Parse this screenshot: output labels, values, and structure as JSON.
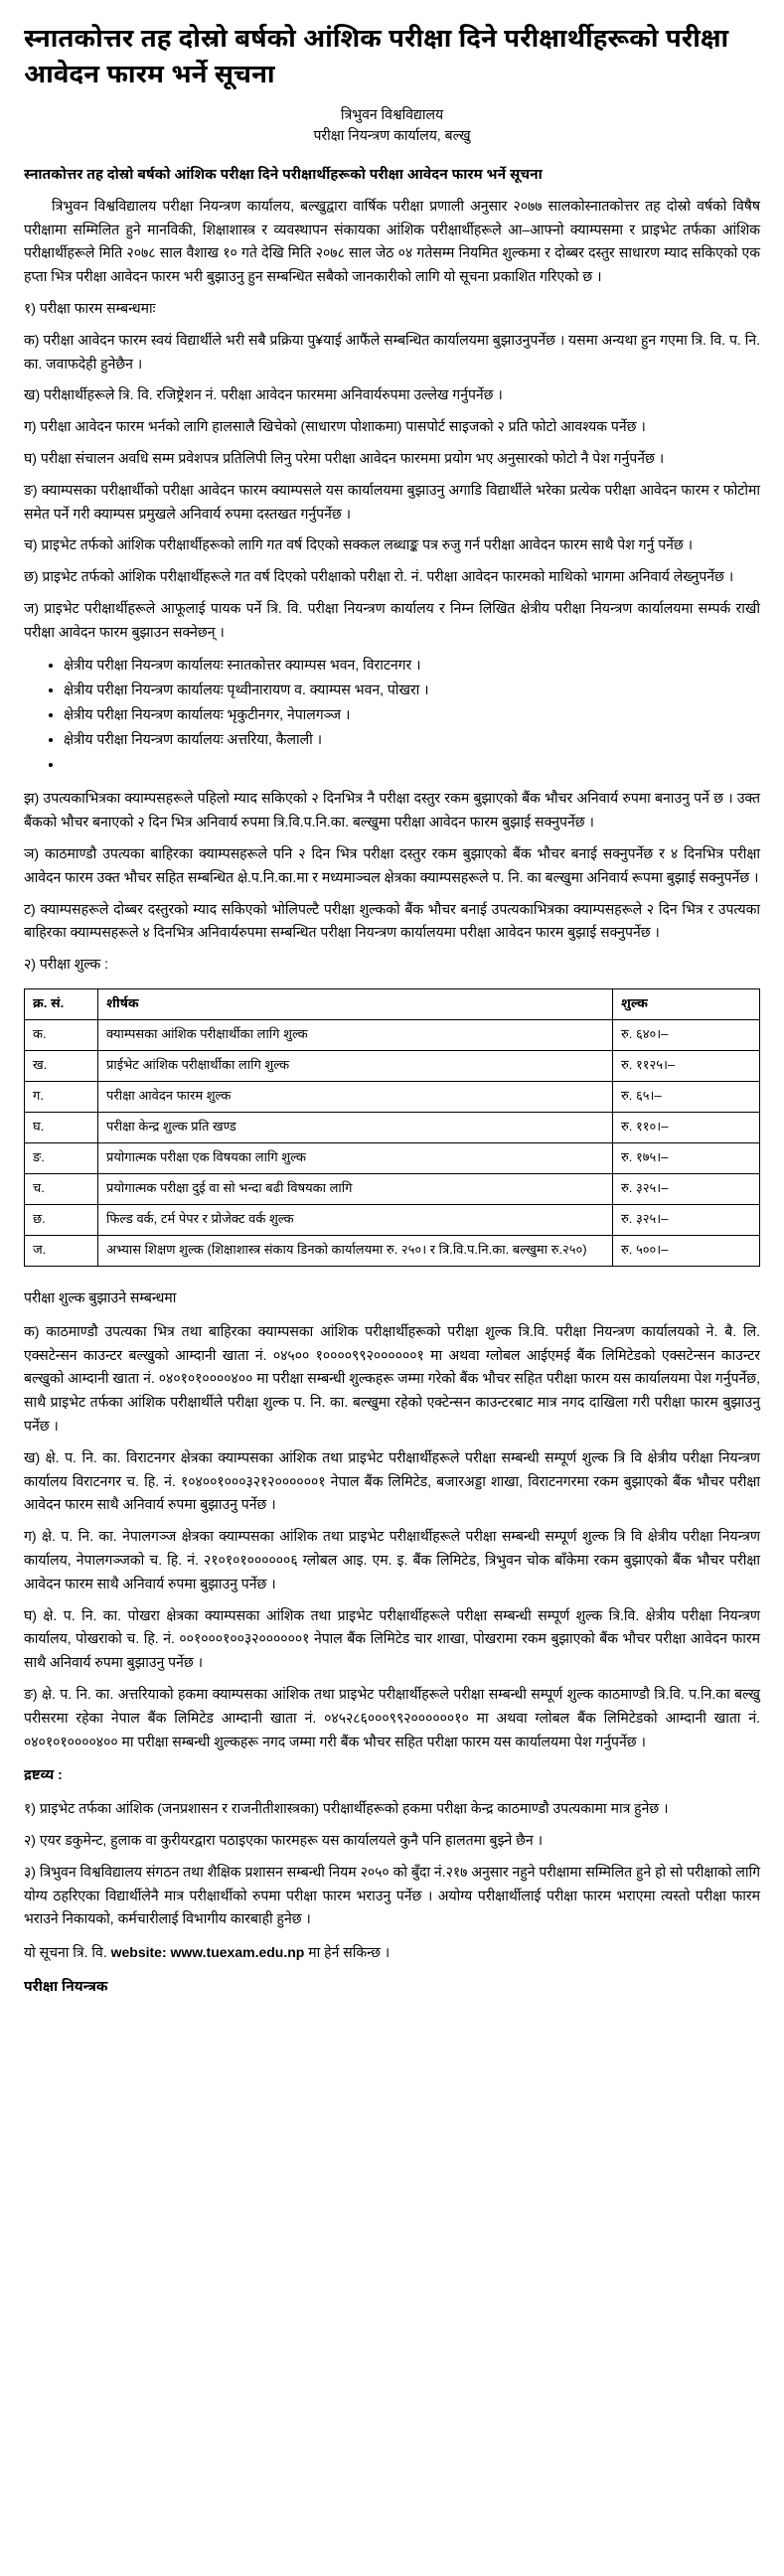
{
  "title": "स्नातकोत्तर तह दोस्रो बर्षको आंशिक परीक्षा दिने परीक्षार्थीहरूको परीक्षा आवेदन फारम भर्ने सूचना",
  "org": {
    "line1": "त्रिभुवन विश्वविद्यालय",
    "line2": "परीक्षा नियन्त्रण कार्यालय, बल्खु"
  },
  "headline_bold": "स्नातकोत्तर तह दोस्रो बर्षको आंशिक परीक्षा दिने परीक्षार्थीहरूको परीक्षा आवेदन फारम भर्ने सूचना",
  "intro": "त्रिभुवन विश्वविद्यालय परीक्षा नियन्त्रण कार्यालय, बल्खुद्वारा वार्षिक परीक्षा प्रणाली अनुसार २०७७ सालकोस्नातकोत्तर तह दोस्रो वर्षको विषैष परीक्षामा सम्मिलित हुने मानविकी, शिक्षाशास्त्र र व्यवस्थापन संकायका आंशिक परीक्षार्थीहरूले आ–आफ्नो क्याम्पसमा र प्राइभेट तर्फका आंशिक परीक्षार्थीहरूले मिति २०७८ साल वैशाख १० गते देखि मिति २०७८ साल जेठ ०४ गतेसम्म नियमित शुल्कमा र दोब्बर दस्तुर साधारण म्याद सकिएको एक हप्ता भित्र परीक्षा आवेदन फारम भरी बुझाउनु हुन सम्बन्धित सबैको जानकारीको लागि यो सूचना प्रकाशित गरिएको छ ।",
  "section1_heading": "१) परीक्षा फारम सम्बन्धमाः",
  "s1": {
    "ka": "क) परीक्षा आवेदन फारम स्वयं विद्यार्थीले भरी सबै प्रक्रिया पु¥याई आफैंले सम्बन्धित कार्यालयमा बुझाउनुपर्नेछ । यसमा अन्यथा हुन गएमा त्रि. वि. प. नि. का. जवाफदेही हुनेछैन ।",
    "kha": "ख) परीक्षार्थीहरूले त्रि. वि. रजिष्ट्रेशन नं. परीक्षा आवेदन फारममा अनिवार्यरुपमा उल्लेख गर्नुपर्नेछ ।",
    "ga": "ग) परीक्षा आवेदन फारम भर्नको लागि हालसालै खिचेको (साधारण पोशाकमा) पासपोर्ट साइजको २ प्रति फोटो आवश्यक पर्नेछ ।",
    "gha": "घ) परीक्षा संचालन अवधि सम्म प्रवेशपत्र प्रतिलिपी लिनु परेमा परीक्षा आवेदन फारममा प्रयोग भए अनुसारको फोटो नै पेश गर्नुपर्नेछ ।",
    "nga": "ङ) क्याम्पसका परीक्षार्थीको परीक्षा आवेदन फारम क्याम्पसले यस कार्यालयमा बुझाउनु अगाडि विद्यार्थीले भरेका प्रत्येक परीक्षा आवेदन फारम र फोटोमा समेत पर्ने गरी क्याम्पस प्रमुखले अनिवार्य रुपमा दस्तखत गर्नुपर्नेछ ।",
    "cha": "च) प्राइभेट तर्फको आंशिक परीक्षार्थीहरूको लागि गत वर्ष दिएको सक्कल लब्धाङ्क पत्र रुजु गर्न परीक्षा आवेदन फारम साथै पेश गर्नु पर्नेछ ।",
    "chha": "छ) प्राइभेट तर्फको आंशिक परीक्षार्थीहरूले गत वर्ष दिएको परीक्षाको परीक्षा रो. नं. परीक्षा आवेदन फारमको माथिको भागमा अनिवार्य लेख्नुपर्नेछ ।",
    "ja": "ज) प्राइभेट परीक्षार्थीहरूले आफूलाई पायक पर्ने त्रि. वि. परीक्षा नियन्त्रण कार्यालय र निम्न लिखित क्षेत्रीय परीक्षा नियन्त्रण कार्यालयमा सम्पर्क राखी परीक्षा आवेदन फारम बुझाउन सक्नेछन् ।",
    "bullets": [
      "क्षेत्रीय परीक्षा नियन्त्रण कार्यालयः स्नातकोत्तर क्याम्पस भवन, विराटनगर ।",
      "क्षेत्रीय परीक्षा नियन्त्रण कार्यालयः पृथ्वीनारायण व. क्याम्पस भवन, पोखरा ।",
      "क्षेत्रीय परीक्षा नियन्त्रण कार्यालयः भृकुटीनगर, नेपालगञ्ज ।",
      "क्षेत्रीय परीक्षा नियन्त्रण कार्यालयः अत्तरिया, कैलाली ।"
    ],
    "jha": "झ)    उपत्यकाभित्रका क्याम्पसहरूले पहिलो म्याद सकिएको २ दिनभित्र नै परीक्षा दस्तुर रकम बुझाएको बैंक भौचर अनिवार्य रुपमा बनाउनु पर्ने छ । उक्त बैंकको भौचर बनाएको २ दिन भित्र अनिवार्य रुपमा त्रि.वि.प.नि.का. बल्खुमा परीक्षा आवेदन फारम बुझाई सक्नुपर्नेछ ।",
    "nya": "ञ)    काठमाण्डौ उपत्यका बाहिरका क्याम्पसहरूले पनि २ दिन भित्र परीक्षा दस्तुर रकम बुझाएको बैंक भौचर बनाई सक्नुपर्नेछ र ४ दिनभित्र परीक्षा आवेदन फारम उक्त भौचर सहित सम्बन्धित क्षे.प.नि.का.मा र मध्यमाञ्चल क्षेत्रका क्याम्पसहरूले प. नि. का बल्खुमा अनिवार्य रूपमा बुझाई सक्नुपर्नेछ ।",
    "ta": "ट)    क्याम्पसहरूले दोब्बर दस्तुरको म्याद सकिएको भोलिपल्टै परीक्षा शुल्कको बैंक भौचर बनाई उपत्यकाभित्रका क्याम्पसहरूले २ दिन भित्र र उपत्यका बाहिरका क्याम्पसहरूले ४ दिनभित्र अनिवार्यरुपमा सम्बन्धित परीक्षा नियन्त्रण कार्यालयमा परीक्षा आवेदन फारम बुझाई सक्नुपर्नेछ ।"
  },
  "section2_heading": "२)    परीक्षा शुल्क :",
  "table": {
    "header": {
      "sn": "क्र. सं.",
      "title": "शीर्षक",
      "fee": "शुल्क"
    },
    "rows": [
      {
        "sn": "क.",
        "title": "क्याम्पसका आंशिक परीक्षार्थीका लागि शुल्क",
        "fee": "रु. ६४०।–"
      },
      {
        "sn": "ख.",
        "title": "प्राईभेट आंशिक परीक्षार्थीका लागि शुल्क",
        "fee": "रु. ११२५।–"
      },
      {
        "sn": "ग.",
        "title": "परीक्षा आवेदन फारम शुल्क",
        "fee": "रु. ६५।–"
      },
      {
        "sn": "घ.",
        "title": "परीक्षा केन्द्र शुल्क प्रति खण्ड",
        "fee": "रु. ११०।–"
      },
      {
        "sn": "ङ.",
        "title": "प्रयोगात्मक परीक्षा एक विषयका लागि शुल्क",
        "fee": "रु. १७५।–"
      },
      {
        "sn": "च.",
        "title": "प्रयोगात्मक परीक्षा दुई वा सो भन्दा बढी विषयका लागि",
        "fee": "रु. ३२५।–"
      },
      {
        "sn": "छ.",
        "title": "फिल्ड वर्क, टर्म पेपर र प्रोजेक्ट वर्क शुल्क",
        "fee": "रु. ३२५।–"
      },
      {
        "sn": "ज.",
        "title": "अभ्यास शिक्षण शुल्क (शिक्षाशास्त्र संकाय डिनको कार्यालयमा रु. २५०। र त्रि.वि.प.नि.का. बल्खुमा रु.२५०)",
        "fee": "रु. ५००।–"
      }
    ]
  },
  "fee_section_heading": "परीक्षा शुल्क बुझाउने सम्बन्धमा",
  "fee_para": {
    "ka": "क)    काठमाण्डौ उपत्यका भित्र तथा बाहिरका क्याम्पसका आंशिक परीक्षार्थीहरूको परीक्षा शुल्क त्रि.वि. परीक्षा नियन्त्रण कार्यालयको ने. बै. लि. एक्सटेन्सन काउन्टर बल्खुको आम्दानी खाता नं. ०४५०० १००००९९२००००००१ मा अथवा ग्लोबल आईएमई बैंक लिमिटेडको एक्सटेन्सन काउन्टर बल्खुको आम्दानी खाता नं. ०४०१०१००००४०० मा परीक्षा सम्बन्धी शुल्कहरू जम्मा गरेको बैंक भौचर सहित परीक्षा फारम यस कार्यालयमा पेश गर्नुपर्नेछ, साथै प्राइभेट तर्फका आंशिक परीक्षार्थीले परीक्षा शुल्क प. नि. का. बल्खुमा रहेको एक्टेन्सन काउन्टरबाट मात्र नगद दाखिला गरी परीक्षा फारम बुझाउनु पर्नेछ ।",
    "kha": "ख)    क्षे. प. नि. का. विराटनगर क्षेत्रका क्याम्पसका आंशिक तथा प्राइभेट परीक्षार्थीहरूले परीक्षा सम्बन्धी सम्पूर्ण शुल्क त्रि वि क्षेत्रीय परीक्षा नियन्त्रण कार्यालय विराटनगर च. हि. नं. १०४००१०००३२१२००००००१ नेपाल बैंक लिमिटेड, बजारअड्डा शाखा, विराटनगरमा रकम बुझाएको बैंक भौचर परीक्षा आवेदन फारम साथै अनिवार्य रुपमा बुझाउनु पर्नेछ ।",
    "ga": "ग)    क्षे. प. नि. का. नेपालगञ्ज क्षेत्रका क्याम्पसका आंशिक तथा प्राइभेट परीक्षार्थीहरूले परीक्षा सम्बन्धी सम्पूर्ण शुल्क त्रि वि क्षेत्रीय परीक्षा नियन्त्रण कार्यालय, नेपालगञ्जको च. हि. नं. २१०१०१००००००६ ग्लोबल आइ. एम. इ. बैंक लिमिटेड, त्रिभुवन चोक बाँकेमा रकम बुझाएको बैंक भौचर परीक्षा आवेदन फारम साथै अनिवार्य रुपमा बुझाउनु पर्नेछ ।",
    "gha": "घ) क्षे. प. नि. का. पोखरा क्षेत्रका क्याम्पसका आंशिक तथा प्राइभेट परीक्षार्थीहरूले परीक्षा सम्बन्धी सम्पूर्ण शुल्क त्रि.वि. क्षेत्रीय परीक्षा नियन्त्रण कार्यालय, पोखराको च. हि. नं. ००१०००१००३२००००००१ नेपाल बैंक लिमिटेड चार शाखा, पोखरामा रकम बुझाएको बैंक भौचर परीक्षा आवेदन फारम साथै अनिवार्य रुपमा बुझाउनु पर्नेछ ।",
    "nga": "ङ) क्षे. प. नि. का. अत्तरियाको हकमा क्याम्पसका आंशिक तथा प्राइभेट परीक्षार्थीहरूले परीक्षा सम्बन्धी सम्पूर्ण शुल्क काठमाण्डौ त्रि.वि. प.नि.का बल्खु परीसरमा रहेका नेपाल बैंक लिमिटेड आम्दानी खाता नं. ०४५२८६०००९९२००००००१० मा अथवा ग्लोबल बैंक लिमिटेडको आम्दानी खाता नं. ०४०१०१००००४०० मा परीक्षा सम्बन्धी शुल्कहरू नगद जम्मा गरी बैंक भौचर सहित परीक्षा फारम यस कार्यालयमा पेश गर्नुपर्नेछ ।"
  },
  "note_heading": "द्रष्टव्य :",
  "notes": {
    "n1": "१) प्राइभेट तर्फका आंशिक (जनप्रशासन र राजनीतीशास्त्रका) परीक्षार्थीहरूको हकमा परीक्षा केन्द्र काठमाण्डौ उपत्यकामा मात्र हुनेछ ।",
    "n2": "२) एयर डकुमेन्ट, हुलाक वा कुरीयरद्वारा पठाइएका फारमहरू यस कार्यालयले कुनै पनि हालतमा बुझ्ने छैन ।",
    "n3": "३) त्रिभुवन विश्वविद्यालय संगठन तथा शैक्षिक प्रशासन सम्बन्धी नियम २०५० को बुँदा नं.२१७   अनुसार नहुने   परीक्षामा सम्मिलित हुने हो सो परीक्षाको लागि योग्य ठहरिएका विद्यार्थीलेनै मात्र परीक्षार्थीको रुपमा परीक्षा फारम भराउनु पर्नेछ । अयोग्य परीक्षार्थीलाई परीक्षा फारम भराएमा त्यस्तो परीक्षा फारम भराउने निकायको, कर्मचारीलाई विभागीय कारबाही हुनेछ ।"
  },
  "website_line_prefix": "यो सूचना त्रि. वि. ",
  "website_label": "website: www.tuexam.edu.np",
  "website_line_suffix": " मा हेर्न सकिन्छ ।",
  "signature": "परीक्षा नियन्त्रक"
}
